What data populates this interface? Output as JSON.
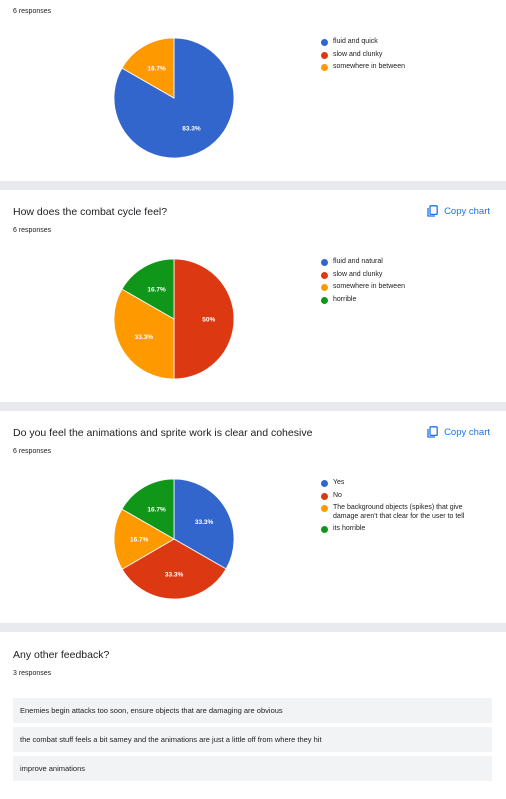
{
  "charts": [
    {
      "responses": "6 responses",
      "legend": [
        {
          "label": "fluid and quick",
          "color": "#3366cc"
        },
        {
          "label": "slow and clunky",
          "color": "#dc3912"
        },
        {
          "label": "somewhere in between",
          "color": "#ff9900"
        }
      ]
    },
    {
      "title": "How does the combat cycle feel?",
      "responses": "6 responses",
      "copy_label": "Copy chart",
      "legend": [
        {
          "label": "fluid and natural",
          "color": "#3366cc"
        },
        {
          "label": "slow and clunky",
          "color": "#dc3912"
        },
        {
          "label": "somewhere in between",
          "color": "#ff9900"
        },
        {
          "label": "horrible",
          "color": "#109618"
        }
      ]
    },
    {
      "title": "Do you feel the animations and sprite work is clear and cohesive",
      "responses": "6 responses",
      "copy_label": "Copy chart",
      "legend": [
        {
          "label": "Yes",
          "color": "#3366cc"
        },
        {
          "label": "No",
          "color": "#dc3912"
        },
        {
          "label": "The background objects (spikes) that give damage aren't that clear for the user to tell",
          "color": "#ff9900"
        },
        {
          "label": "its horrible",
          "color": "#109618"
        }
      ]
    }
  ],
  "chart_data": [
    {
      "type": "pie",
      "categories": [
        "fluid and quick",
        "slow and clunky",
        "somewhere in between"
      ],
      "values": [
        83.3,
        0,
        16.7
      ],
      "labels": [
        "83.3%",
        "",
        "16.7%"
      ],
      "colors": [
        "#3366cc",
        "#dc3912",
        "#ff9900"
      ]
    },
    {
      "type": "pie",
      "categories": [
        "fluid and natural",
        "slow and clunky",
        "somewhere in between",
        "horrible"
      ],
      "values": [
        0,
        50,
        33.3,
        16.7
      ],
      "labels": [
        "",
        "50%",
        "33.3%",
        "16.7%"
      ],
      "colors": [
        "#3366cc",
        "#dc3912",
        "#ff9900",
        "#109618"
      ]
    },
    {
      "type": "pie",
      "categories": [
        "Yes",
        "No",
        "The background objects (spikes) that give damage aren't that clear for the user to tell",
        "its horrible"
      ],
      "values": [
        33.3,
        33.3,
        16.7,
        16.7
      ],
      "labels": [
        "33.3%",
        "33.3%",
        "16.7%",
        "16.7%"
      ],
      "colors": [
        "#3366cc",
        "#dc3912",
        "#ff9900",
        "#109618"
      ]
    }
  ],
  "feedback": {
    "title": "Any other feedback?",
    "responses": "3 responses",
    "items": [
      "Enemies begin attacks too soon, ensure objects that are damaging are obvious",
      "the combat stuff feels a bit samey and the animations are just a little off from where they hit",
      "improve animations"
    ]
  }
}
